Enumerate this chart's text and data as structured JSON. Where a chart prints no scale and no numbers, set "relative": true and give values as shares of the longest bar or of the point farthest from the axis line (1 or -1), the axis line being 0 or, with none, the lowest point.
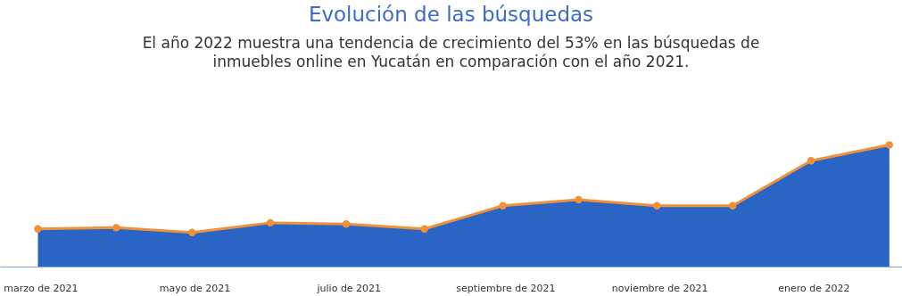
{
  "chart_data": {
    "type": "area",
    "title": "Evolución de las búsquedas",
    "subtitle": "El año 2022 muestra una tendencia de crecimiento del 53% en las búsquedas de\ninmuebles online en Yucatán en comparación con el año 2021.",
    "relative": true,
    "x": [
      "2021-02-28",
      "2021-03-31",
      "2021-04-30",
      "2021-05-31",
      "2021-06-30",
      "2021-07-31",
      "2021-08-31",
      "2021-09-30",
      "2021-10-31",
      "2021-11-30",
      "2021-12-31",
      "2022-01-31"
    ],
    "xlim": [
      "2021-02-13",
      "2022-02-05"
    ],
    "xticks": [
      {
        "value": "2021-03",
        "label": "marzo de 2021"
      },
      {
        "value": "2021-05",
        "label": "mayo de 2021"
      },
      {
        "value": "2021-07",
        "label": "julio de 2021"
      },
      {
        "value": "2021-09",
        "label": "septiembre de 2021"
      },
      {
        "value": "2021-11",
        "label": "noviembre de 2021"
      },
      {
        "value": "2022-01",
        "label": "enero de 2022"
      }
    ],
    "series": [
      {
        "color": "#2a64c5",
        "values": [
          0.31,
          0.32,
          0.28,
          0.36,
          0.35,
          0.31,
          0.5,
          0.55,
          0.5,
          0.5,
          0.87,
          1.0
        ]
      },
      {
        "type": "line",
        "marker": "circle",
        "color": "#f0913a",
        "values": [
          0.31,
          0.32,
          0.28,
          0.36,
          0.35,
          0.31,
          0.5,
          0.55,
          0.5,
          0.5,
          0.87,
          1.0
        ]
      }
    ]
  }
}
